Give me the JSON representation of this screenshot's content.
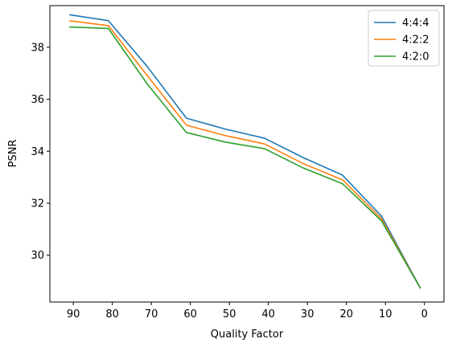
{
  "chart_data": {
    "type": "line",
    "xlabel": "Quality Factor",
    "ylabel": "PSNR",
    "x": [
      91,
      81,
      71,
      61,
      51,
      41,
      31,
      21,
      11,
      1
    ],
    "x_reversed": true,
    "xlim": [
      96,
      -5
    ],
    "ylim": [
      28.2,
      39.6
    ],
    "xticks": [
      90,
      80,
      70,
      60,
      50,
      40,
      30,
      20,
      10,
      0
    ],
    "xtick_labels": [
      "90",
      "80",
      "70",
      "60",
      "50",
      "40",
      "30",
      "20",
      "10",
      "0"
    ],
    "yticks": [
      30,
      32,
      34,
      36,
      38
    ],
    "ytick_labels": [
      "30",
      "32",
      "34",
      "36",
      "38"
    ],
    "grid": false,
    "legend_position": "top-right",
    "series": [
      {
        "name": "4:4:4",
        "color": "#1f77b4",
        "values": [
          39.25,
          39.02,
          37.25,
          35.27,
          34.85,
          34.5,
          33.75,
          33.08,
          31.5,
          28.72
        ]
      },
      {
        "name": "4:2:2",
        "color": "#ff7f0e",
        "values": [
          39.02,
          38.83,
          36.9,
          35.0,
          34.6,
          34.28,
          33.52,
          32.9,
          31.4,
          28.72
        ]
      },
      {
        "name": "4:2:0",
        "color": "#2ca02c",
        "values": [
          38.78,
          38.72,
          36.58,
          34.72,
          34.35,
          34.1,
          33.35,
          32.75,
          31.32,
          28.72
        ]
      }
    ]
  }
}
